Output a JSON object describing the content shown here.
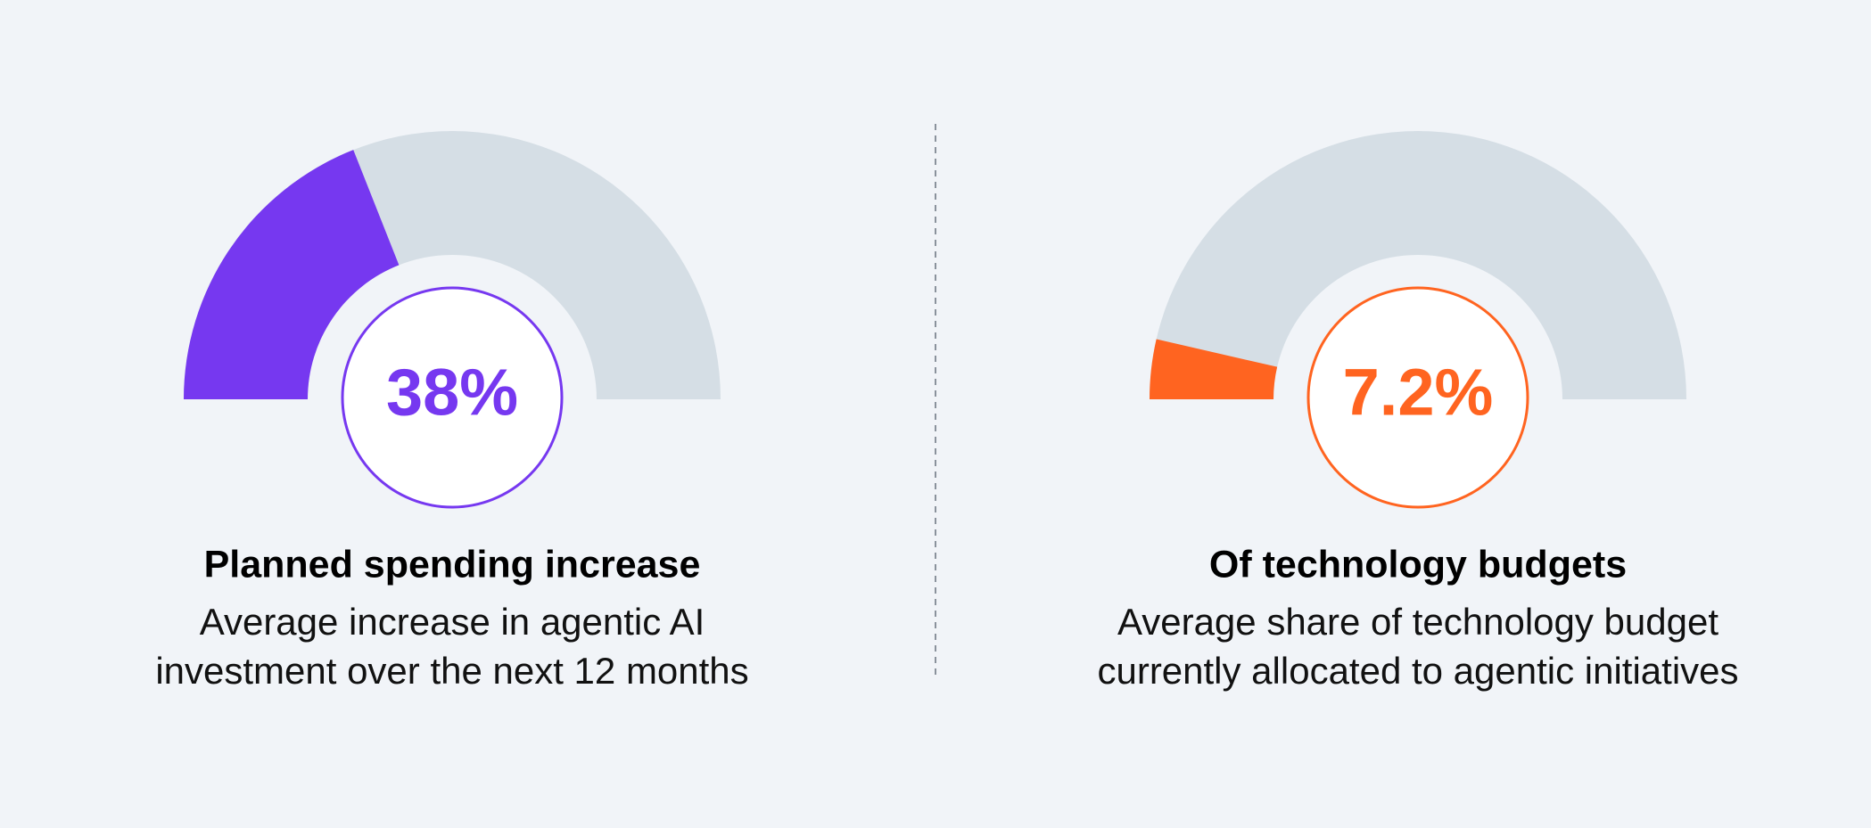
{
  "chart_data": [
    {
      "type": "gauge",
      "value": 38,
      "value_label": "38%",
      "ylim": [
        0,
        100
      ],
      "color": "#7638f0",
      "track_color": "#d5dee5",
      "title": "Planned spending increase",
      "subtitle": [
        "Average increase in agentic AI",
        "investment over the next 12 months"
      ]
    },
    {
      "type": "gauge",
      "value": 7.2,
      "value_label": "7.2%",
      "ylim": [
        0,
        100
      ],
      "color": "#ff6420",
      "track_color": "#d5dee5",
      "title": "Of technology budgets",
      "subtitle": [
        "Average share of technology budget",
        "currently allocated to agentic initiatives"
      ]
    }
  ]
}
